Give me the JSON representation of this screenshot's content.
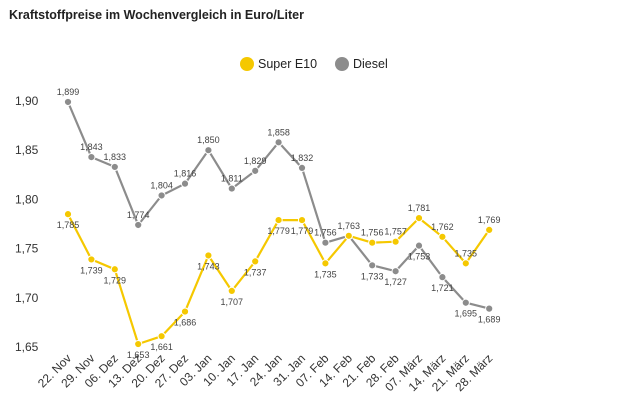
{
  "chart_data": {
    "type": "line",
    "title": "Kraftstoffpreise im Wochenvergleich in Euro/Liter",
    "xlabel": "",
    "ylabel": "",
    "ylim": [
      1.65,
      1.9
    ],
    "yticks": [
      "1,90",
      "1,85",
      "1,80",
      "1,75",
      "1,70",
      "1,65"
    ],
    "ytick_values": [
      1.9,
      1.85,
      1.8,
      1.75,
      1.7,
      1.65
    ],
    "grid": false,
    "legend_position": "top",
    "categories": [
      "22. Nov",
      "29. Nov",
      "06. Dez",
      "13. Dez",
      "20. Dez",
      "27. Dez",
      "03. Jan",
      "10. Jan",
      "17. Jan",
      "24. Jan",
      "31. Jan",
      "07. Feb",
      "14. Feb",
      "21. Feb",
      "28. Feb",
      "07. März",
      "14. März",
      "21. März",
      "28. März"
    ],
    "series": [
      {
        "name": "Super E10",
        "color": "#f5c800",
        "values": [
          1.785,
          1.739,
          1.729,
          1.653,
          1.661,
          1.686,
          1.743,
          1.707,
          1.737,
          1.779,
          1.779,
          1.735,
          1.763,
          1.756,
          1.757,
          1.781,
          1.762,
          1.735,
          1.769
        ],
        "labels": [
          "1,785",
          "1,739",
          "1,729",
          "1,653",
          "1,661",
          "1,686",
          "1,743",
          "1,707",
          "1,737",
          "1,779",
          "1,779",
          "1,735",
          "",
          "1,756",
          "1,757",
          "1,781",
          "1,762",
          "1,735",
          "1,769"
        ]
      },
      {
        "name": "Diesel",
        "color": "#8c8c8c",
        "values": [
          1.899,
          1.843,
          1.833,
          1.774,
          1.804,
          1.816,
          1.85,
          1.811,
          1.829,
          1.858,
          1.832,
          1.756,
          1.763,
          1.733,
          1.727,
          1.753,
          1.721,
          1.695,
          1.689
        ],
        "labels": [
          "1,899",
          "1,843",
          "1,833",
          "1,774",
          "1,804",
          "1,816",
          "1,850",
          "1,811",
          "1,829",
          "1,858",
          "1,832",
          "1,756",
          "1,763",
          "1,733",
          "1,727",
          "1,753",
          "1,721",
          "1,695",
          "1,689"
        ]
      }
    ]
  }
}
